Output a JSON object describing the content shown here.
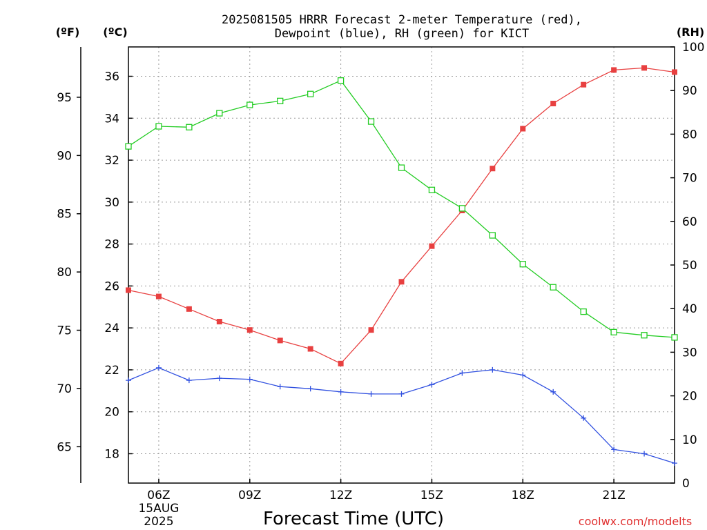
{
  "chart_data": {
    "type": "line",
    "title_lines": [
      "2025081505 HRRR Forecast 2-meter Temperature (red),",
      "Dewpoint (blue), RH (green) for KICT"
    ],
    "xlabel": "Forecast Time (UTC)",
    "credit": "coolwx.com/modelts",
    "units": {
      "fahrenheit": "(ºF)",
      "celsius": "(ºC)",
      "rh": "(RH)"
    },
    "x_hours": [
      5,
      6,
      7,
      8,
      9,
      10,
      11,
      12,
      13,
      14,
      15,
      16,
      17,
      18,
      19,
      20,
      21,
      22,
      23
    ],
    "x_ticks": [
      {
        "hour": 6,
        "label": "06Z",
        "sublabels": [
          "15AUG",
          "2025"
        ]
      },
      {
        "hour": 9,
        "label": "09Z"
      },
      {
        "hour": 12,
        "label": "12Z"
      },
      {
        "hour": 15,
        "label": "15Z"
      },
      {
        "hour": 18,
        "label": "18Z"
      },
      {
        "hour": 21,
        "label": "21Z"
      }
    ],
    "xlim": [
      5,
      23
    ],
    "celsius_ylim": [
      16.6,
      37.4
    ],
    "celsius_ticks": [
      18,
      20,
      22,
      24,
      26,
      28,
      30,
      32,
      34,
      36
    ],
    "fahrenheit_ticks": [
      65,
      70,
      75,
      80,
      85,
      90,
      95
    ],
    "rh_ylim": [
      0,
      100
    ],
    "rh_ticks": [
      0,
      10,
      20,
      30,
      40,
      50,
      60,
      70,
      80,
      90,
      100
    ],
    "grid": true,
    "series": [
      {
        "name": "Temperature",
        "axis": "celsius",
        "color": "#e84040",
        "marker": "filled-square",
        "values": [
          25.8,
          25.5,
          24.9,
          24.3,
          23.9,
          23.4,
          23.0,
          22.3,
          23.9,
          26.2,
          27.9,
          29.6,
          31.6,
          33.5,
          34.7,
          35.6,
          36.3,
          36.4,
          36.2
        ]
      },
      {
        "name": "Dewpoint",
        "axis": "celsius",
        "color": "#3050e0",
        "marker": "plus",
        "values": [
          21.5,
          22.1,
          21.5,
          21.6,
          21.55,
          21.2,
          21.1,
          20.95,
          20.85,
          20.85,
          21.3,
          21.85,
          22.0,
          21.75,
          20.95,
          19.7,
          18.2,
          18.0,
          17.55
        ]
      },
      {
        "name": "RH",
        "axis": "rh",
        "color": "#22cc22",
        "marker": "open-square",
        "values": [
          77.2,
          81.8,
          81.6,
          84.8,
          86.7,
          87.6,
          89.2,
          92.3,
          82.9,
          72.3,
          67.2,
          63.0,
          56.8,
          50.2,
          44.9,
          39.3,
          34.6,
          33.9,
          33.4
        ]
      }
    ]
  }
}
